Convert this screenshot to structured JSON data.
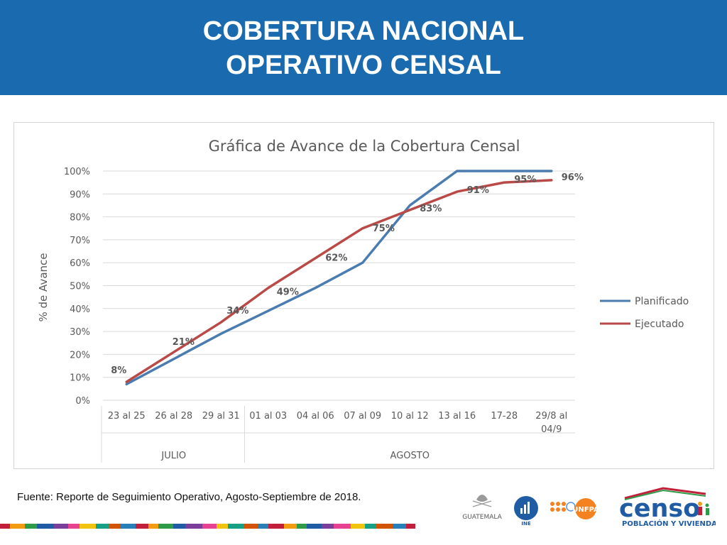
{
  "header": {
    "title_line1": "COBERTURA NACIONAL",
    "title_line2": "OPERATIVO CENSAL",
    "bg_color": "#1a6aaf"
  },
  "chart_data": {
    "type": "line",
    "title": "Gráfica de Avance de la Cobertura Censal",
    "xlabel": "",
    "ylabel": "% de Avance",
    "ylim": [
      0,
      100
    ],
    "yticks": [
      "0%",
      "10%",
      "20%",
      "30%",
      "40%",
      "50%",
      "60%",
      "70%",
      "80%",
      "90%",
      "100%"
    ],
    "categories": [
      "23 al 25",
      "26 al 28",
      "29 al 31",
      "01 al 03",
      "04 al 06",
      "07 al 09",
      "10 al 12",
      "13 al 16",
      "17-28",
      "29/8 al 04/9"
    ],
    "groups": [
      {
        "label": "JULIO",
        "count": 3
      },
      {
        "label": "AGOSTO",
        "count": 7
      }
    ],
    "series": [
      {
        "name": "Planificado",
        "color": "#4a7cb0",
        "values": [
          7,
          18,
          29,
          39,
          49,
          60,
          85,
          100,
          100,
          100
        ]
      },
      {
        "name": "Ejecutado",
        "color": "#b94a48",
        "values": [
          8,
          21,
          34,
          49,
          62,
          75,
          83,
          91,
          95,
          96
        ]
      }
    ],
    "data_labels": [
      "8%",
      "21%",
      "34%",
      "49%",
      "62%",
      "75%",
      "83%",
      "91%",
      "95%",
      "96%"
    ],
    "grid": true,
    "legend_position": "right"
  },
  "footer": {
    "source": "Fuente: Reporte de Seguimiento Operativo, Agosto-Septiembre de 2018.",
    "logo_guatemala": "GUATEMALA",
    "logo_ine": "INE",
    "logo_unfpa": "UNFPA",
    "logo_censo": "censo",
    "logo_censo_sub": "POBLACIÓN Y VIVIENDA"
  }
}
